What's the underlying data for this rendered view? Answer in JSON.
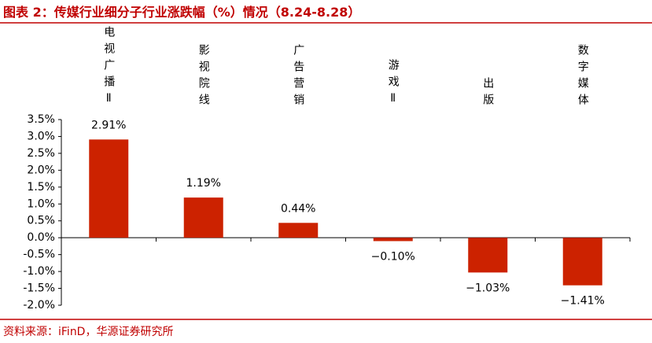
{
  "chart_data": {
    "type": "bar",
    "title": "图表 2：传媒行业细分子行业涨跌幅（%）情况（8.24-8.28）",
    "source": "资料来源：iFinD，华源证券研究所",
    "categories": [
      "电视广播Ⅱ",
      "影视院线",
      "广告营销",
      "游戏Ⅱ",
      "出版",
      "数字媒体"
    ],
    "values": [
      2.91,
      1.19,
      0.44,
      -0.1,
      -1.03,
      -1.41
    ],
    "value_labels": [
      "2.91%",
      "1.19%",
      "0.44%",
      "−0.10%",
      "−1.03%",
      "−1.41%"
    ],
    "color": "#cc2200",
    "ylim": [
      -2.0,
      3.5
    ],
    "yticks": [
      {
        "value": -2.0,
        "label": "-2.0%"
      },
      {
        "value": -1.5,
        "label": "-1.5%"
      },
      {
        "value": -1.0,
        "label": "-1.0%"
      },
      {
        "value": -0.5,
        "label": "-0.5%"
      },
      {
        "value": 0.0,
        "label": "0.0%"
      },
      {
        "value": 0.5,
        "label": "0.5%"
      },
      {
        "value": 1.0,
        "label": "1.0%"
      },
      {
        "value": 1.5,
        "label": "1.5%"
      },
      {
        "value": 2.0,
        "label": "2.0%"
      },
      {
        "value": 2.5,
        "label": "2.5%"
      },
      {
        "value": 3.0,
        "label": "3.0%"
      },
      {
        "value": 3.5,
        "label": "3.5%"
      }
    ],
    "grid": false
  }
}
